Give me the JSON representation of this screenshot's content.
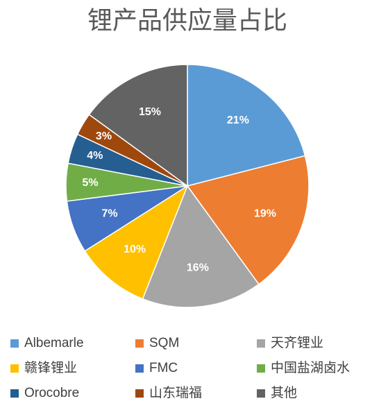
{
  "chart_data": {
    "type": "pie",
    "title": "锂产品供应量占比",
    "categories": [
      "Albemarle",
      "SQM",
      "天齐锂业",
      "赣锋锂业",
      "FMC",
      "中国盐湖卤水",
      "Orocobre",
      "山东瑞福",
      "其他"
    ],
    "values": [
      21,
      19,
      16,
      10,
      7,
      5,
      4,
      3,
      15
    ],
    "value_labels": [
      "21%",
      "19%",
      "16%",
      "10%",
      "7%",
      "5%",
      "4%",
      "3%",
      "15%"
    ],
    "colors": [
      "#5b9bd5",
      "#ed7d31",
      "#a5a5a5",
      "#ffc000",
      "#4472c4",
      "#70ad47",
      "#255e91",
      "#9e480e",
      "#636363"
    ],
    "legend": "bottom"
  }
}
